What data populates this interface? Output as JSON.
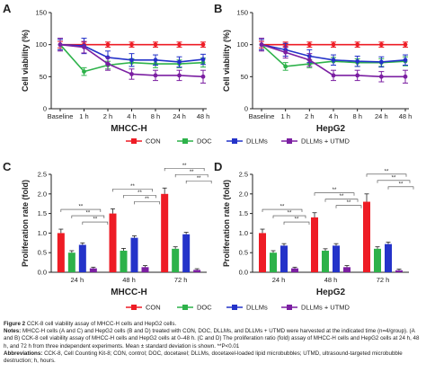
{
  "series_names": [
    "CON",
    "DOC",
    "DLLMs",
    "DLLMs + UTMD"
  ],
  "colors": [
    "#ee1c25",
    "#2db24a",
    "#2433c9",
    "#7b1fa2"
  ],
  "chart_data": [
    {
      "panel": "A",
      "type": "line",
      "group": "MHCC-H",
      "ylabel": "Cell viability (%)",
      "ylim": [
        0,
        150
      ],
      "yticks": [
        0,
        50,
        100,
        150
      ],
      "categories": [
        "Baseline",
        "1 h",
        "2 h",
        "4 h",
        "8 h",
        "24 h",
        "48 h"
      ],
      "series": [
        {
          "name": "CON",
          "values": [
            100,
            100,
            100,
            100,
            100,
            100,
            100
          ],
          "errors": [
            5,
            4,
            4,
            4,
            4,
            4,
            4
          ]
        },
        {
          "name": "DOC",
          "values": [
            100,
            58,
            68,
            72,
            70,
            70,
            72
          ],
          "errors": [
            8,
            6,
            6,
            6,
            6,
            6,
            7
          ]
        },
        {
          "name": "DLLMs",
          "values": [
            100,
            98,
            80,
            76,
            76,
            73,
            77
          ],
          "errors": [
            8,
            12,
            10,
            10,
            8,
            8,
            8
          ]
        },
        {
          "name": "DLLMs + UTMD",
          "values": [
            100,
            96,
            70,
            54,
            52,
            52,
            50
          ],
          "errors": [
            10,
            9,
            10,
            8,
            8,
            8,
            10
          ]
        }
      ]
    },
    {
      "panel": "B",
      "type": "line",
      "group": "HepG2",
      "ylabel": "Cell viability (%)",
      "ylim": [
        0,
        150
      ],
      "yticks": [
        0,
        50,
        100,
        150
      ],
      "categories": [
        "Baseline",
        "1 h",
        "2 h",
        "4 h",
        "8 h",
        "24 h",
        "48 h"
      ],
      "series": [
        {
          "name": "CON",
          "values": [
            100,
            100,
            100,
            100,
            100,
            100,
            100
          ],
          "errors": [
            5,
            4,
            4,
            4,
            4,
            4,
            4
          ]
        },
        {
          "name": "DOC",
          "values": [
            100,
            66,
            70,
            74,
            72,
            72,
            74
          ],
          "errors": [
            8,
            6,
            6,
            6,
            6,
            6,
            7
          ]
        },
        {
          "name": "DLLMs",
          "values": [
            100,
            92,
            82,
            76,
            74,
            73,
            76
          ],
          "errors": [
            8,
            10,
            10,
            8,
            8,
            8,
            8
          ]
        },
        {
          "name": "DLLMs + UTMD",
          "values": [
            100,
            88,
            76,
            52,
            52,
            50,
            50
          ],
          "errors": [
            10,
            9,
            10,
            8,
            8,
            8,
            10
          ]
        }
      ]
    },
    {
      "panel": "C",
      "type": "bar",
      "group": "MHCC-H",
      "ylabel": "Proliferation rate (fold)",
      "ylim": [
        0,
        2.5
      ],
      "yticks": [
        0.0,
        0.5,
        1.0,
        1.5,
        2.0,
        2.5
      ],
      "categories": [
        "24 h",
        "48 h",
        "72 h"
      ],
      "series": [
        {
          "name": "CON",
          "values": [
            1.0,
            1.5,
            2.0
          ],
          "errors": [
            0.1,
            0.12,
            0.15
          ]
        },
        {
          "name": "DOC",
          "values": [
            0.5,
            0.55,
            0.6
          ],
          "errors": [
            0.05,
            0.06,
            0.05
          ]
        },
        {
          "name": "DLLMs",
          "values": [
            0.7,
            0.88,
            0.97
          ],
          "errors": [
            0.05,
            0.05,
            0.05
          ]
        },
        {
          "name": "DLLMs + UTMD",
          "values": [
            0.1,
            0.13,
            0.06
          ],
          "errors": [
            0.03,
            0.04,
            0.03
          ]
        }
      ],
      "significance": "**"
    },
    {
      "panel": "D",
      "type": "bar",
      "group": "HepG2",
      "ylabel": "Proliferation rate (fold)",
      "ylim": [
        0,
        2.5
      ],
      "yticks": [
        0.0,
        0.5,
        1.0,
        1.5,
        2.0,
        2.5
      ],
      "categories": [
        "24 h",
        "48 h",
        "72 h"
      ],
      "series": [
        {
          "name": "CON",
          "values": [
            1.0,
            1.4,
            1.8
          ],
          "errors": [
            0.1,
            0.12,
            0.2
          ]
        },
        {
          "name": "DOC",
          "values": [
            0.5,
            0.55,
            0.6
          ],
          "errors": [
            0.05,
            0.05,
            0.05
          ]
        },
        {
          "name": "DLLMs",
          "values": [
            0.68,
            0.68,
            0.72
          ],
          "errors": [
            0.05,
            0.05,
            0.05
          ]
        },
        {
          "name": "DLLMs + UTMD",
          "values": [
            0.1,
            0.13,
            0.05
          ],
          "errors": [
            0.03,
            0.04,
            0.03
          ]
        }
      ],
      "significance": "**"
    }
  ],
  "caption": {
    "figure_label": "Figure 2",
    "figure_title": "CCK-8 cell viability assay of MHCC-H cells and HepG2 cells.",
    "notes_label": "Notes:",
    "notes_text": "MHCC-H cells (A and C) and HepG2 cells (B and D) treated with CON, DOC, DLLMs, and DLLMs + UTMD were harvested at the indicated time (n=4/group). (A and B) CCK-8 cell viability assay of MHCC-H cells and HepG2 cells at 0–48 h. (C and D) The proliferation ratio (fold) assay of MHCC-H cells and HepG2 cells at 24 h, 48 h, and 72 h from three independent experiments. Mean ± standard deviation is shown. **P<0.01",
    "abbrev_label": "Abbreviations:",
    "abbrev_text": "CCK-8, Cell Counting Kit-8; CON, control; DOC, docetaxel; DLLMs, docetaxel-loaded lipid microbubbles; UTMD, ultrasound-targeted microbubble destruction; h, hours."
  }
}
